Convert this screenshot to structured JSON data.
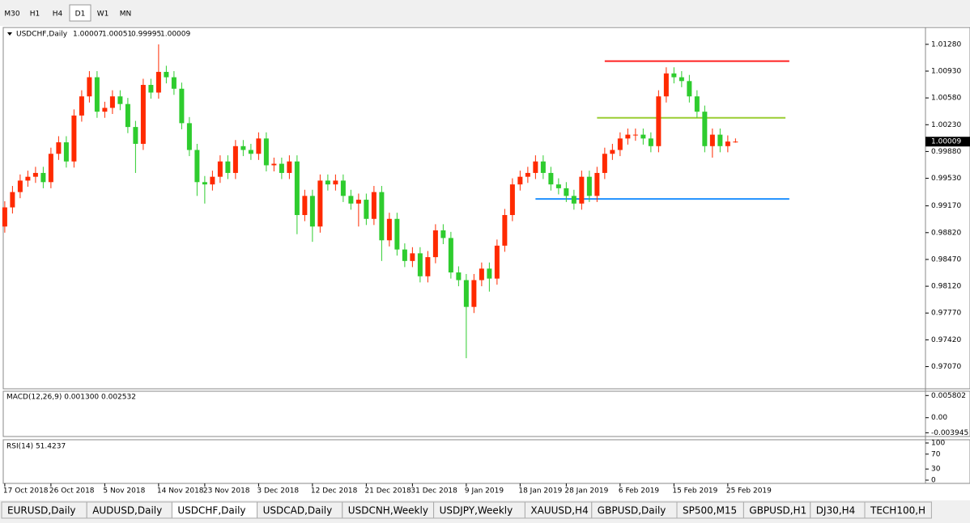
{
  "toolbar": {
    "timeframes": [
      "M30",
      "H1",
      "H4",
      "D1",
      "W1",
      "MN"
    ],
    "active": 3
  },
  "chart_data": {
    "type": "candlestick",
    "title": "USDCHF,Daily",
    "up_color": "#ff2a00",
    "down_color": "#2ecc2e",
    "open": [
      0.989,
      0.9915,
      0.9935,
      0.995,
      0.9955,
      0.996,
      0.9948,
      0.9985,
      1.0,
      0.9975,
      1.0035,
      1.006,
      1.0085,
      1.004,
      1.0045,
      1.006,
      1.005,
      1.002,
      0.9998,
      1.0075,
      1.0065,
      1.0092,
      1.0085,
      1.007,
      1.0025,
      0.999,
      0.9948,
      0.9945,
      0.9955,
      0.9975,
      0.996,
      0.9995,
      0.999,
      0.9985,
      1.0005,
      0.997,
      0.9972,
      0.996,
      0.9975,
      0.9905,
      0.993,
      0.989,
      0.995,
      0.9945,
      0.995,
      0.993,
      0.992,
      0.9925,
      0.99,
      0.9935,
      0.9872,
      0.99,
      0.986,
      0.9845,
      0.9855,
      0.9825,
      0.985,
      0.9885,
      0.9875,
      0.983,
      0.982,
      0.9785,
      0.982,
      0.9835,
      0.9822,
      0.9865,
      0.9905,
      0.9945,
      0.9955,
      0.996,
      0.9975,
      0.996,
      0.9945,
      0.994,
      0.993,
      0.992,
      0.9955,
      0.993,
      0.996,
      0.9985,
      0.999,
      1.0005,
      1.001,
      1.001,
      1.0005,
      0.9995,
      1.006,
      1.009,
      1.0085,
      1.008,
      1.006,
      1.004,
      0.9995,
      1.001,
      0.9995,
      1.00007
    ],
    "high": [
      0.9923,
      0.9943,
      0.9958,
      0.9963,
      0.9968,
      0.9968,
      0.9993,
      1.0008,
      1.0008,
      1.0043,
      1.0068,
      1.0093,
      1.0093,
      1.0053,
      1.0068,
      1.0068,
      1.0058,
      1.0028,
      1.0083,
      1.0083,
      1.0128,
      1.01,
      1.0093,
      1.0078,
      1.0033,
      0.9998,
      0.9956,
      0.9963,
      0.9983,
      0.9983,
      1.0003,
      1.0003,
      0.9998,
      1.0013,
      1.0013,
      0.998,
      0.998,
      0.9983,
      0.9983,
      0.9938,
      0.9938,
      0.9958,
      0.9958,
      0.9958,
      0.9958,
      0.9938,
      0.9933,
      0.9933,
      0.9943,
      0.9943,
      0.9908,
      0.9908,
      0.9868,
      0.9863,
      0.9863,
      0.9858,
      0.9893,
      0.9893,
      0.9883,
      0.9838,
      0.9828,
      0.9828,
      0.9843,
      0.9843,
      0.9873,
      0.9913,
      0.9953,
      0.9963,
      0.9968,
      0.9983,
      0.9983,
      0.9968,
      0.9953,
      0.9948,
      0.9938,
      0.9963,
      0.9963,
      0.9968,
      0.9993,
      0.9998,
      1.0013,
      1.0018,
      1.0018,
      1.0018,
      1.0013,
      1.0068,
      1.0098,
      1.0098,
      1.0093,
      1.0088,
      1.0068,
      1.0048,
      1.0018,
      1.0018,
      1.0009,
      1.00051
    ],
    "low": [
      0.9882,
      0.9907,
      0.9927,
      0.9942,
      0.9947,
      0.994,
      0.994,
      0.9977,
      0.9967,
      0.9967,
      1.0027,
      1.0052,
      1.0032,
      1.0032,
      1.0037,
      1.0042,
      1.0012,
      0.996,
      0.999,
      1.0057,
      1.0057,
      1.0077,
      1.0062,
      1.0017,
      0.9982,
      0.993,
      0.992,
      0.9937,
      0.9947,
      0.9952,
      0.9952,
      0.9982,
      0.9977,
      0.9977,
      0.9962,
      0.9962,
      0.9952,
      0.9952,
      0.988,
      0.9897,
      0.987,
      0.9882,
      0.9937,
      0.9937,
      0.9922,
      0.9912,
      0.989,
      0.9892,
      0.9892,
      0.9845,
      0.9864,
      0.9852,
      0.9837,
      0.9837,
      0.9817,
      0.9817,
      0.9842,
      0.9867,
      0.9822,
      0.9812,
      0.9718,
      0.9777,
      0.9812,
      0.9805,
      0.9814,
      0.9857,
      0.9897,
      0.9937,
      0.9947,
      0.9952,
      0.9952,
      0.9937,
      0.9932,
      0.9922,
      0.9912,
      0.9912,
      0.9922,
      0.9922,
      0.9952,
      0.9977,
      0.9982,
      0.9997,
      1.0002,
      0.9997,
      0.9987,
      0.9987,
      1.0052,
      1.0077,
      1.0072,
      1.0052,
      1.0032,
      0.9987,
      0.998,
      0.9987,
      0.9987,
      0.99995
    ],
    "close": [
      0.9915,
      0.9935,
      0.995,
      0.9955,
      0.996,
      0.9948,
      0.9985,
      1.0,
      0.9975,
      1.0035,
      1.006,
      1.0085,
      1.004,
      1.0045,
      1.006,
      1.005,
      1.002,
      0.9998,
      1.0075,
      1.0065,
      1.0092,
      1.0085,
      1.007,
      1.0025,
      0.999,
      0.9948,
      0.9945,
      0.9955,
      0.9975,
      0.996,
      0.9995,
      0.999,
      0.9985,
      1.0005,
      0.997,
      0.9972,
      0.996,
      0.9975,
      0.9905,
      0.993,
      0.989,
      0.995,
      0.9945,
      0.995,
      0.993,
      0.992,
      0.9925,
      0.99,
      0.9935,
      0.9872,
      0.99,
      0.986,
      0.9845,
      0.9855,
      0.9825,
      0.985,
      0.9885,
      0.9875,
      0.983,
      0.982,
      0.9785,
      0.982,
      0.9835,
      0.9822,
      0.9865,
      0.9905,
      0.9945,
      0.9955,
      0.996,
      0.9975,
      0.996,
      0.9945,
      0.994,
      0.993,
      0.992,
      0.9955,
      0.993,
      0.996,
      0.9985,
      0.999,
      1.0005,
      1.001,
      1.001,
      1.0005,
      0.9995,
      1.006,
      1.009,
      1.0085,
      1.008,
      1.006,
      1.004,
      0.9995,
      1.001,
      0.9995,
      1.0001,
      1.00009
    ],
    "levels": [
      {
        "value": 1.0106,
        "color": "#ff2020",
        "from": 78,
        "to": 102
      },
      {
        "value": 1.0032,
        "color": "#9acd32",
        "from": 77,
        "to": 101.5
      },
      {
        "value": 0.9926,
        "color": "#1e90ff",
        "from": 69,
        "to": 102
      }
    ],
    "xlim": [
      -0.2,
      119.7
    ],
    "ylim": [
      0.9678,
      1.015
    ],
    "yticks": [
      {
        "value": 1.0128,
        "label": "1.01280"
      },
      {
        "value": 1.0093,
        "label": "1.00930"
      },
      {
        "value": 1.0058,
        "label": "1.00580"
      },
      {
        "value": 1.0023,
        "label": "1.00230"
      },
      {
        "value": 0.9988,
        "label": "0.99880"
      },
      {
        "value": 0.9953,
        "label": "0.99530"
      },
      {
        "value": 0.9917,
        "label": "0.99170"
      },
      {
        "value": 0.9882,
        "label": "0.98820"
      },
      {
        "value": 0.9847,
        "label": "0.98470"
      },
      {
        "value": 0.9812,
        "label": "0.98120"
      },
      {
        "value": 0.9777,
        "label": "0.97770"
      },
      {
        "value": 0.9742,
        "label": "0.97420"
      },
      {
        "value": 0.9707,
        "label": "0.97070"
      }
    ],
    "xticks": [
      {
        "value": 0,
        "label": "17 Oct 2018"
      },
      {
        "value": 6,
        "label": "26 Oct 2018"
      },
      {
        "value": 13,
        "label": "5 Nov 2018"
      },
      {
        "value": 20,
        "label": "14 Nov 2018"
      },
      {
        "value": 26,
        "label": "23 Nov 2018"
      },
      {
        "value": 33,
        "label": "3 Dec 2018"
      },
      {
        "value": 40,
        "label": "12 Dec 2018"
      },
      {
        "value": 47,
        "label": "21 Dec 2018"
      },
      {
        "value": 53,
        "label": "31 Dec 2018"
      },
      {
        "value": 60,
        "label": "9 Jan 2019"
      },
      {
        "value": 67,
        "label": "18 Jan 2019"
      },
      {
        "value": 73,
        "label": "28 Jan 2019"
      },
      {
        "value": 80,
        "label": "6 Feb 2019"
      },
      {
        "value": 87,
        "label": "15 Feb 2019"
      },
      {
        "value": 94,
        "label": "25 Feb 2019"
      }
    ]
  },
  "macd": {
    "title": "MACD(12,26,9) 0.001300 0.002532",
    "ylim": [
      -0.0045,
      0.0065
    ],
    "yticks": [
      0.005802,
      {
        "value": 0,
        "label": "0.00"
      },
      -0.003945
    ]
  },
  "rsi": {
    "title": "RSI(14) 51.4237",
    "ylim": [
      0,
      100
    ],
    "yticks": [
      100,
      70,
      30,
      0
    ]
  },
  "tabs": {
    "items": [
      "EURUSD,Daily",
      "AUDUSD,Daily",
      "USDCHF,Daily",
      "USDCAD,Daily",
      "USDCNH,Weekly",
      "USDJPY,Weekly",
      "XAUUSD,H4",
      "GBPUSD,Daily",
      "SP500,M15",
      "GBPUSD,H1",
      "DJ30,H4",
      "TECH100,H"
    ],
    "active": 2
  }
}
